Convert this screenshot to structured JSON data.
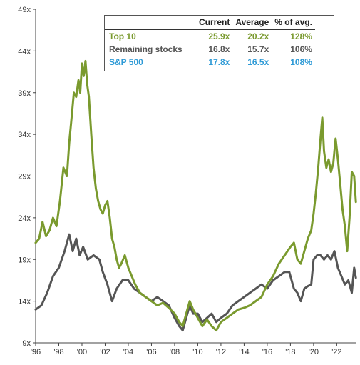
{
  "chart_data": {
    "type": "line",
    "ylim": [
      9,
      49
    ],
    "xlim": [
      1996,
      2023.7
    ],
    "grid": false,
    "yticks": [
      9,
      14,
      19,
      24,
      29,
      34,
      39,
      44,
      49
    ],
    "ytick_labels": [
      "9x",
      "14x",
      "19x",
      "24x",
      "29x",
      "34x",
      "39x",
      "44x",
      "49x"
    ],
    "xticks": [
      1996,
      1998,
      2000,
      2002,
      2004,
      2006,
      2008,
      2010,
      2012,
      2014,
      2016,
      2018,
      2020,
      2022
    ],
    "xtick_labels": [
      "'96",
      "'98",
      "'00",
      "'02",
      "'04",
      "'06",
      "'08",
      "'10",
      "'12",
      "'14",
      "'16",
      "'18",
      "'20",
      "'22"
    ],
    "legend": {
      "placement": "top-right",
      "headers": [
        "",
        "Current",
        "Average",
        "% of avg."
      ],
      "rows": [
        {
          "name": "Top 10",
          "current": "25.9x",
          "average": "20.2x",
          "pct": "128%",
          "color": "#7a9a2e"
        },
        {
          "name": "Remaining stocks",
          "current": "16.8x",
          "average": "15.7x",
          "pct": "106%",
          "color": "#555555"
        },
        {
          "name": "S&P 500",
          "current": "17.8x",
          "average": "16.5x",
          "pct": "108%",
          "color": "#2e9ad6"
        }
      ]
    },
    "series": [
      {
        "name": "Top 10",
        "color": "#7a9a2e",
        "points": [
          [
            1996.0,
            21.0
          ],
          [
            1996.3,
            21.5
          ],
          [
            1996.6,
            23.5
          ],
          [
            1996.9,
            21.8
          ],
          [
            1997.2,
            22.5
          ],
          [
            1997.5,
            24.0
          ],
          [
            1997.8,
            23.0
          ],
          [
            1998.1,
            26.0
          ],
          [
            1998.4,
            30.0
          ],
          [
            1998.7,
            29.0
          ],
          [
            1998.9,
            33.0
          ],
          [
            1999.1,
            36.0
          ],
          [
            1999.3,
            39.0
          ],
          [
            1999.5,
            38.5
          ],
          [
            1999.7,
            40.5
          ],
          [
            1999.85,
            39.0
          ],
          [
            2000.0,
            42.5
          ],
          [
            2000.15,
            41.0
          ],
          [
            2000.3,
            42.8
          ],
          [
            2000.45,
            40.0
          ],
          [
            2000.6,
            38.5
          ],
          [
            2000.8,
            34.0
          ],
          [
            2001.0,
            30.0
          ],
          [
            2001.2,
            27.5
          ],
          [
            2001.4,
            26.0
          ],
          [
            2001.6,
            25.0
          ],
          [
            2001.8,
            24.5
          ],
          [
            2002.0,
            25.5
          ],
          [
            2002.2,
            26.0
          ],
          [
            2002.4,
            24.0
          ],
          [
            2002.6,
            21.5
          ],
          [
            2002.8,
            20.5
          ],
          [
            2003.0,
            19.0
          ],
          [
            2003.2,
            18.0
          ],
          [
            2003.4,
            18.5
          ],
          [
            2003.7,
            19.5
          ],
          [
            2004.0,
            18.0
          ],
          [
            2004.3,
            17.0
          ],
          [
            2004.6,
            16.0
          ],
          [
            2005.0,
            15.0
          ],
          [
            2005.5,
            14.5
          ],
          [
            2006.0,
            14.0
          ],
          [
            2006.5,
            13.5
          ],
          [
            2007.0,
            13.8
          ],
          [
            2007.5,
            13.2
          ],
          [
            2008.0,
            12.5
          ],
          [
            2008.4,
            11.5
          ],
          [
            2008.7,
            11.0
          ],
          [
            2009.0,
            12.5
          ],
          [
            2009.3,
            14.0
          ],
          [
            2009.6,
            13.0
          ],
          [
            2010.0,
            12.0
          ],
          [
            2010.4,
            11.0
          ],
          [
            2010.8,
            11.8
          ],
          [
            2011.2,
            11.0
          ],
          [
            2011.6,
            10.5
          ],
          [
            2012.0,
            11.5
          ],
          [
            2012.5,
            12.0
          ],
          [
            2013.0,
            12.5
          ],
          [
            2013.5,
            13.0
          ],
          [
            2014.0,
            13.2
          ],
          [
            2014.5,
            13.5
          ],
          [
            2015.0,
            14.0
          ],
          [
            2015.5,
            14.5
          ],
          [
            2016.0,
            16.0
          ],
          [
            2016.5,
            17.0
          ],
          [
            2017.0,
            18.5
          ],
          [
            2017.5,
            19.5
          ],
          [
            2018.0,
            20.5
          ],
          [
            2018.3,
            21.0
          ],
          [
            2018.6,
            19.0
          ],
          [
            2018.9,
            18.5
          ],
          [
            2019.2,
            20.0
          ],
          [
            2019.5,
            21.5
          ],
          [
            2019.8,
            22.5
          ],
          [
            2020.0,
            24.5
          ],
          [
            2020.2,
            27.0
          ],
          [
            2020.4,
            30.0
          ],
          [
            2020.6,
            33.5
          ],
          [
            2020.75,
            36.0
          ],
          [
            2020.9,
            32.0
          ],
          [
            2021.1,
            30.0
          ],
          [
            2021.3,
            31.0
          ],
          [
            2021.5,
            29.5
          ],
          [
            2021.7,
            30.5
          ],
          [
            2021.9,
            33.5
          ],
          [
            2022.1,
            31.0
          ],
          [
            2022.3,
            28.0
          ],
          [
            2022.5,
            25.0
          ],
          [
            2022.7,
            23.0
          ],
          [
            2022.9,
            20.0
          ],
          [
            2023.1,
            24.0
          ],
          [
            2023.3,
            29.5
          ],
          [
            2023.5,
            29.0
          ],
          [
            2023.65,
            25.9
          ]
        ]
      },
      {
        "name": "Remaining stocks",
        "color": "#555555",
        "points": [
          [
            1996.0,
            13.0
          ],
          [
            1996.5,
            13.5
          ],
          [
            1997.0,
            15.0
          ],
          [
            1997.5,
            17.0
          ],
          [
            1998.0,
            18.0
          ],
          [
            1998.5,
            20.0
          ],
          [
            1998.9,
            22.0
          ],
          [
            1999.2,
            20.0
          ],
          [
            1999.5,
            21.5
          ],
          [
            1999.8,
            19.5
          ],
          [
            2000.1,
            20.5
          ],
          [
            2000.5,
            19.0
          ],
          [
            2001.0,
            19.5
          ],
          [
            2001.5,
            19.0
          ],
          [
            2001.8,
            17.5
          ],
          [
            2002.2,
            16.0
          ],
          [
            2002.6,
            14.0
          ],
          [
            2003.0,
            15.5
          ],
          [
            2003.5,
            16.5
          ],
          [
            2004.0,
            16.5
          ],
          [
            2004.5,
            15.5
          ],
          [
            2005.0,
            15.0
          ],
          [
            2005.5,
            14.5
          ],
          [
            2006.0,
            14.0
          ],
          [
            2006.5,
            14.5
          ],
          [
            2007.0,
            14.0
          ],
          [
            2007.5,
            13.5
          ],
          [
            2008.0,
            12.0
          ],
          [
            2008.4,
            11.0
          ],
          [
            2008.7,
            10.5
          ],
          [
            2009.0,
            12.0
          ],
          [
            2009.3,
            13.5
          ],
          [
            2009.6,
            12.5
          ],
          [
            2010.0,
            12.5
          ],
          [
            2010.4,
            11.5
          ],
          [
            2010.8,
            12.0
          ],
          [
            2011.2,
            12.5
          ],
          [
            2011.6,
            11.5
          ],
          [
            2012.0,
            12.0
          ],
          [
            2012.5,
            12.5
          ],
          [
            2013.0,
            13.5
          ],
          [
            2013.5,
            14.0
          ],
          [
            2014.0,
            14.5
          ],
          [
            2014.5,
            15.0
          ],
          [
            2015.0,
            15.5
          ],
          [
            2015.5,
            16.0
          ],
          [
            2016.0,
            15.5
          ],
          [
            2016.5,
            16.5
          ],
          [
            2017.0,
            17.0
          ],
          [
            2017.5,
            17.5
          ],
          [
            2017.9,
            17.5
          ],
          [
            2018.3,
            15.5
          ],
          [
            2018.6,
            15.0
          ],
          [
            2018.9,
            14.0
          ],
          [
            2019.2,
            15.5
          ],
          [
            2019.5,
            15.8
          ],
          [
            2019.8,
            16.0
          ],
          [
            2020.0,
            19.0
          ],
          [
            2020.3,
            19.5
          ],
          [
            2020.6,
            19.5
          ],
          [
            2020.9,
            19.0
          ],
          [
            2021.2,
            19.5
          ],
          [
            2021.5,
            19.0
          ],
          [
            2021.8,
            20.0
          ],
          [
            2022.1,
            18.0
          ],
          [
            2022.4,
            17.0
          ],
          [
            2022.7,
            16.0
          ],
          [
            2023.0,
            16.5
          ],
          [
            2023.3,
            15.0
          ],
          [
            2023.5,
            18.0
          ],
          [
            2023.65,
            16.8
          ]
        ]
      }
    ]
  }
}
